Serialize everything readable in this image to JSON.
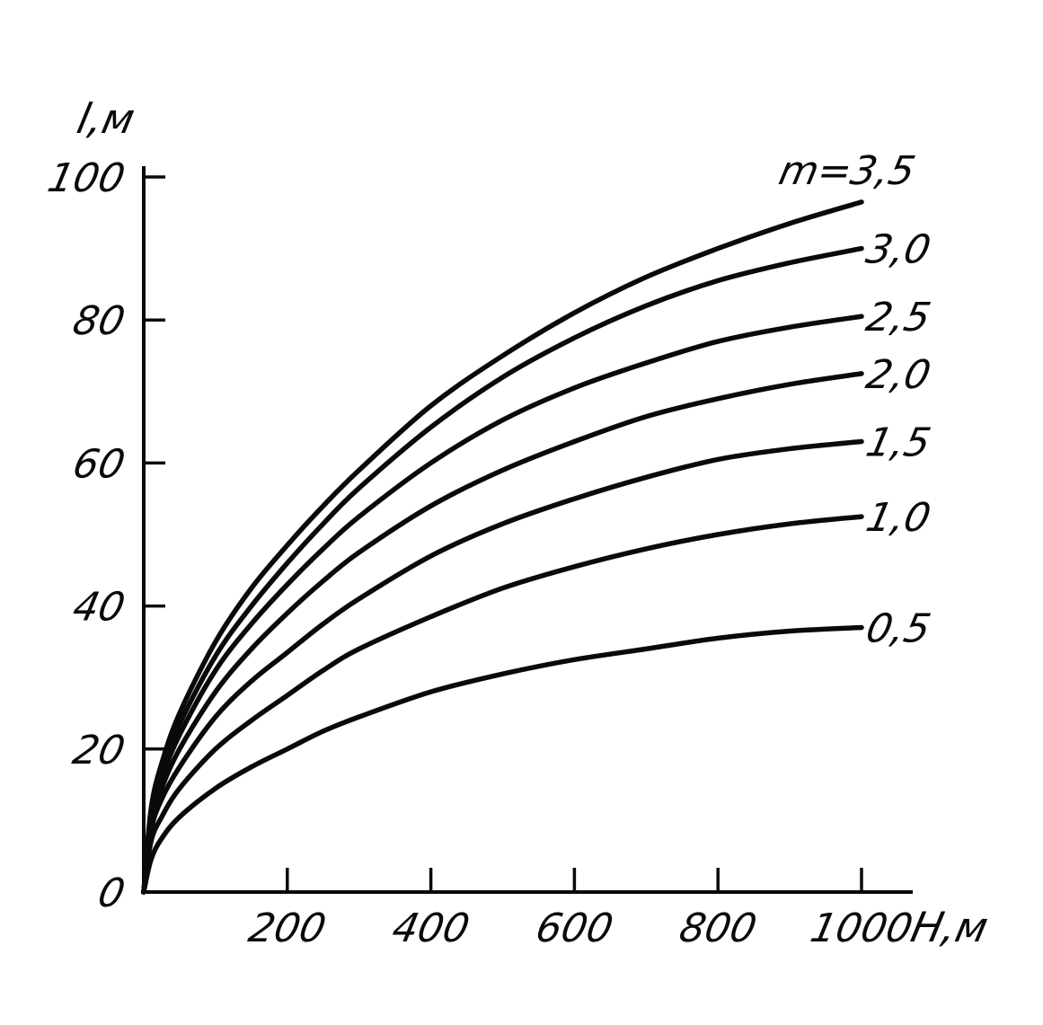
{
  "chart_data": {
    "type": "line",
    "xlabel": "H,м",
    "ylabel": "l,м",
    "xlim": [
      0,
      1070
    ],
    "ylim": [
      0,
      100
    ],
    "x_ticks": [
      200,
      400,
      600,
      800,
      1000
    ],
    "y_ticks": [
      0,
      20,
      40,
      60,
      80,
      100
    ],
    "x_tick_labels": [
      "200",
      "400",
      "600",
      "800",
      "1000"
    ],
    "y_tick_labels": [
      "0",
      "20",
      "40",
      "60",
      "80",
      "100"
    ],
    "grid": false,
    "legend": "inline labels at right end of each curve",
    "x": [
      0,
      10,
      25,
      50,
      100,
      150,
      200,
      250,
      300,
      400,
      500,
      600,
      700,
      800,
      900,
      1000
    ],
    "series": [
      {
        "name": "m=3,5",
        "label": "m=3,5",
        "values": [
          0,
          11.5,
          18,
          25,
          35,
          42.5,
          48.5,
          54,
          59,
          68,
          75,
          81,
          86,
          90,
          93.5,
          96.5
        ]
      },
      {
        "name": "3,0",
        "label": "3,0",
        "values": [
          0,
          11,
          17,
          23.5,
          33,
          40,
          46,
          51.5,
          56.5,
          65,
          72,
          77.5,
          82,
          85.5,
          88,
          90
        ]
      },
      {
        "name": "2,5",
        "label": "2,5",
        "values": [
          0,
          10.5,
          16,
          22,
          31,
          37.5,
          43,
          48,
          52.5,
          60,
          66,
          70.5,
          74,
          77,
          79,
          80.5
        ]
      },
      {
        "name": "2,0",
        "label": "2,0",
        "values": [
          0,
          9.5,
          14.5,
          20,
          28,
          34,
          39,
          43.5,
          47.5,
          54,
          59,
          63,
          66.5,
          69,
          71,
          72.5
        ]
      },
      {
        "name": "1,5",
        "label": "1,5",
        "values": [
          0,
          8.5,
          13,
          17.5,
          24.5,
          29.5,
          33.5,
          37.5,
          41,
          47,
          51.5,
          55,
          58,
          60.5,
          62,
          63
        ]
      },
      {
        "name": "1,0",
        "label": "1,0",
        "values": [
          0,
          7,
          10.5,
          14.5,
          20,
          24,
          27.5,
          31,
          34,
          38.5,
          42.5,
          45.5,
          48,
          50,
          51.5,
          52.5
        ]
      },
      {
        "name": "0,5",
        "label": "0,5",
        "values": [
          0,
          4.5,
          7.5,
          10.5,
          14.5,
          17.5,
          20,
          22.5,
          24.5,
          28,
          30.5,
          32.5,
          34,
          35.5,
          36.5,
          37
        ]
      }
    ]
  }
}
